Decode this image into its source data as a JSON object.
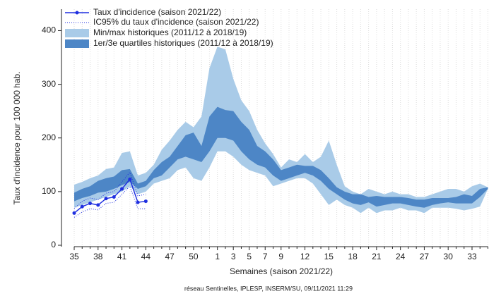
{
  "chart_data": {
    "type": "band-line",
    "y_label": "Taux d'incidence pour 100 000 hab.",
    "x_label": "Semaines (saison 2021/22)",
    "footnote": "réseau Sentinelles, IPLESP, INSERM/SU, 09/11/2021 11:29",
    "categories": [
      "35",
      null,
      null,
      "38",
      null,
      null,
      "41",
      null,
      null,
      "44",
      null,
      null,
      "47",
      null,
      null,
      "50",
      null,
      null,
      "1",
      null,
      "3",
      null,
      "5",
      null,
      "7",
      null,
      "9",
      null,
      null,
      "12",
      null,
      null,
      "15",
      null,
      null,
      "18",
      null,
      null,
      "21",
      null,
      null,
      "24",
      null,
      null,
      "27",
      null,
      null,
      "30",
      null,
      null,
      "33",
      null,
      null
    ],
    "ylim": [
      0,
      440
    ],
    "yticks": [
      0,
      100,
      200,
      300,
      400
    ],
    "grid": "x",
    "series": [
      {
        "name": "Taux d'incidence (saison 2021/22)",
        "color": "#1f2fe0",
        "style": "line",
        "values": [
          60,
          72,
          78,
          75,
          87,
          90,
          105,
          123,
          80,
          82,
          null,
          null,
          null,
          null,
          null,
          null,
          null,
          null,
          null,
          null,
          null,
          null,
          null,
          null,
          null,
          null,
          null,
          null,
          null,
          null,
          null,
          null,
          null,
          null,
          null,
          null,
          null,
          null,
          null,
          null,
          null,
          null,
          null,
          null,
          null,
          null,
          null,
          null,
          null,
          null,
          null,
          null,
          null
        ]
      },
      {
        "name": "IC95% du taux d'incidence (saison 2021/22)",
        "color": "#1f2fe0",
        "style": "dotted",
        "lower": [
          52,
          62,
          68,
          66,
          78,
          80,
          95,
          110,
          68,
          68,
          null,
          null,
          null,
          null,
          null,
          null,
          null,
          null,
          null,
          null,
          null,
          null,
          null,
          null,
          null,
          null,
          null,
          null,
          null,
          null,
          null,
          null,
          null,
          null,
          null,
          null,
          null,
          null,
          null,
          null,
          null,
          null,
          null,
          null,
          null,
          null,
          null,
          null,
          null,
          null,
          null,
          null,
          null
        ],
        "upper": [
          68,
          82,
          88,
          85,
          97,
          100,
          118,
          136,
          92,
          95,
          null,
          null,
          null,
          null,
          null,
          null,
          null,
          null,
          null,
          null,
          null,
          null,
          null,
          null,
          null,
          null,
          null,
          null,
          null,
          null,
          null,
          null,
          null,
          null,
          null,
          null,
          null,
          null,
          null,
          null,
          null,
          null,
          null,
          null,
          null,
          null,
          null,
          null,
          null,
          null,
          null,
          null,
          null
        ]
      },
      {
        "name": "Min/max historiques (2011/12 à 2018/19)",
        "color": "#a9cbe8",
        "style": "band",
        "lower": [
          70,
          75,
          80,
          85,
          90,
          95,
          100,
          110,
          95,
          100,
          115,
          120,
          125,
          140,
          145,
          125,
          120,
          145,
          175,
          175,
          165,
          150,
          140,
          135,
          130,
          110,
          115,
          120,
          125,
          125,
          115,
          95,
          75,
          85,
          75,
          70,
          60,
          70,
          60,
          65,
          65,
          70,
          65,
          65,
          60,
          70,
          70,
          70,
          68,
          65,
          68,
          72,
          105
        ],
        "upper": [
          113,
          118,
          125,
          130,
          142,
          145,
          172,
          175,
          130,
          135,
          150,
          178,
          195,
          215,
          230,
          220,
          240,
          330,
          370,
          365,
          310,
          270,
          250,
          215,
          190,
          170,
          145,
          160,
          155,
          170,
          155,
          165,
          195,
          150,
          110,
          100,
          95,
          105,
          100,
          95,
          100,
          95,
          95,
          90,
          90,
          95,
          100,
          105,
          105,
          100,
          110,
          115,
          108
        ]
      },
      {
        "name": "1er/3e quartiles historiques (2011/12 à 2018/19)",
        "color": "#4d86c6",
        "style": "band",
        "lower": [
          82,
          88,
          92,
          98,
          100,
          105,
          112,
          118,
          105,
          110,
          125,
          130,
          145,
          160,
          165,
          160,
          155,
          175,
          200,
          200,
          195,
          175,
          160,
          150,
          145,
          130,
          120,
          125,
          130,
          135,
          130,
          120,
          105,
          95,
          85,
          78,
          75,
          80,
          72,
          75,
          78,
          78,
          75,
          72,
          70,
          75,
          78,
          80,
          78,
          78,
          78,
          90,
          105
        ],
        "upper": [
          98,
          105,
          110,
          120,
          125,
          128,
          140,
          142,
          115,
          120,
          140,
          155,
          165,
          185,
          205,
          210,
          185,
          240,
          258,
          252,
          250,
          230,
          215,
          185,
          175,
          160,
          140,
          145,
          150,
          148,
          148,
          140,
          125,
          108,
          100,
          95,
          95,
          90,
          92,
          90,
          90,
          90,
          88,
          85,
          85,
          88,
          88,
          88,
          90,
          95,
          92,
          105,
          108
        ]
      }
    ]
  }
}
